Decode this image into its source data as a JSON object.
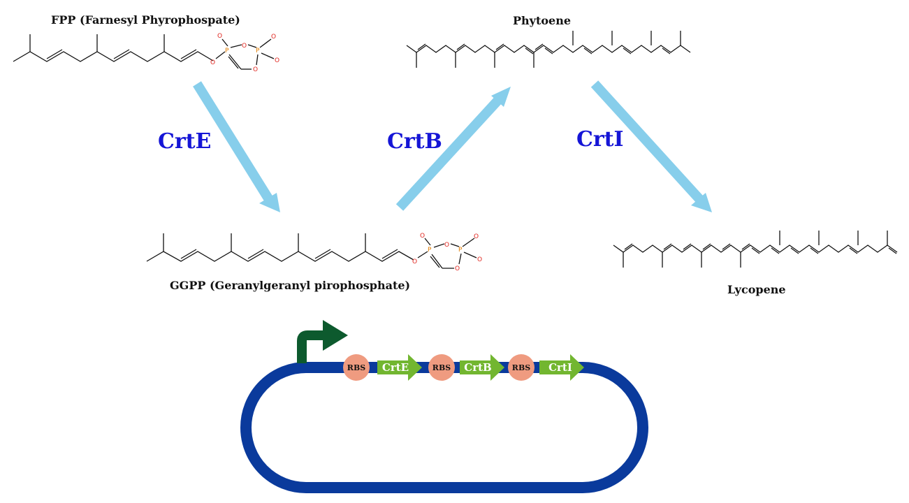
{
  "colors": {
    "arrow": "#87ceeb",
    "enzyme_text": "#1515d6",
    "bond": "#111111",
    "oxygen": "#e0261f",
    "phosphorus": "#e07b00",
    "plasmid": "#0a3a9c",
    "promoter": "#0d5a2e",
    "rbs": "#ef9b80",
    "gene": "#72b630"
  },
  "molecules": {
    "fpp": {
      "label": "FPP (Farnesyl Phyrophospate)"
    },
    "ggpp": {
      "label": "GGPP (Geranylgeranyl pirophosphate)"
    },
    "phytoene": {
      "label": "Phytoene"
    },
    "lycopene": {
      "label": "Lycopene"
    }
  },
  "atoms": {
    "oxygen": "O",
    "phosphorus": "P"
  },
  "enzymes": {
    "crtE": "CrtE",
    "crtB": "CrtB",
    "crtI": "CrtI"
  },
  "construct": {
    "rbs_label": "RBS",
    "genes": [
      "CrtE",
      "CrtB",
      "CrtI"
    ]
  }
}
